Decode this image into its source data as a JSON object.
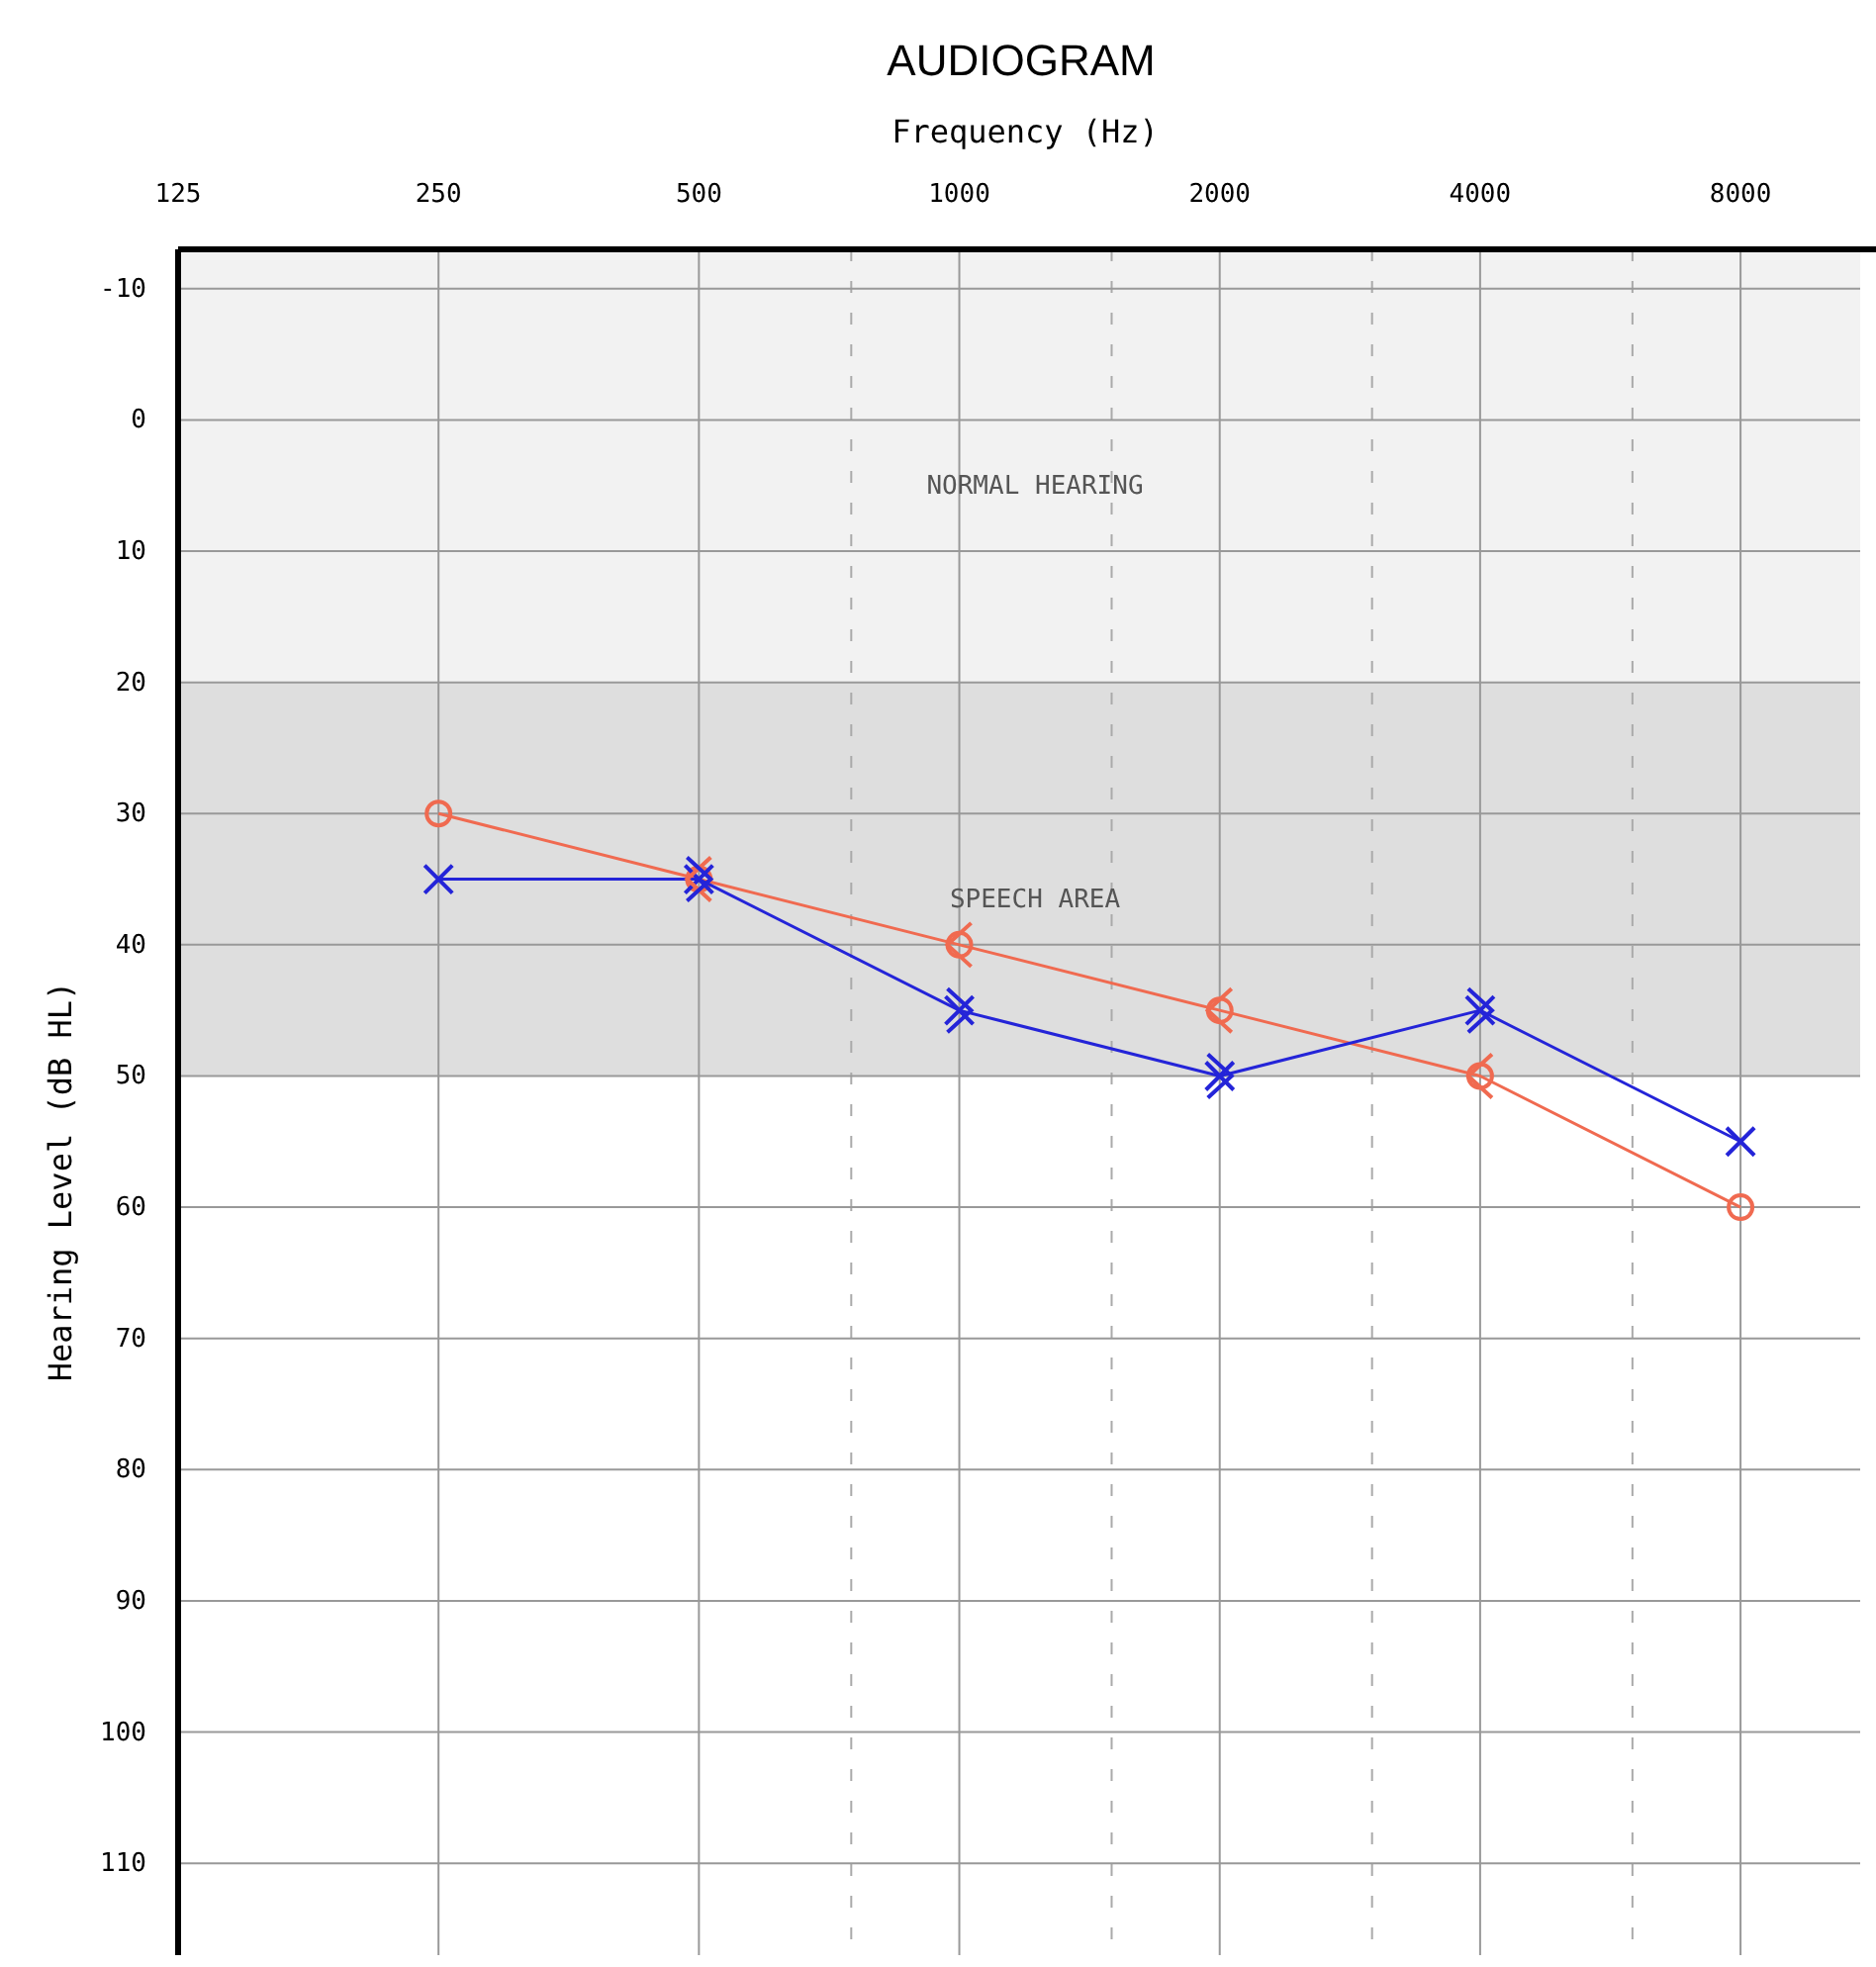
{
  "chart_data": {
    "type": "line",
    "title": "AUDIOGRAM",
    "xlabel": "Frequency (Hz)",
    "ylabel": "Hearing Level (dB HL)",
    "log": "x",
    "xlim": [
      125,
      11000
    ],
    "xticks": [
      125,
      250,
      500,
      {
        "value": 750,
        "label": null
      },
      1000,
      {
        "value": 1500,
        "label": null
      },
      2000,
      {
        "value": 3000,
        "label": null
      },
      4000,
      {
        "value": 6000,
        "label": null
      },
      8000
    ],
    "ylim": [
      117,
      -13
    ],
    "yticks": [
      -10,
      0,
      10,
      20,
      30,
      40,
      50,
      60,
      70,
      80,
      90,
      100,
      110
    ],
    "grid": true,
    "line_style": "solid",
    "bands": [
      {
        "axis": "y",
        "from": -13,
        "to": 20,
        "label": "NORMAL HEARING",
        "color": "#f2f2f2"
      },
      {
        "axis": "y",
        "from": 20,
        "to": 50,
        "label": "SPEECH AREA",
        "color": "#dedede"
      }
    ],
    "series": [
      {
        "marker": "circle",
        "color": "#f06a50",
        "x": [
          250,
          500,
          1000,
          2000,
          4000,
          8000
        ],
        "values": [
          30,
          35,
          40,
          45,
          50,
          60
        ]
      },
      {
        "marker": "cross",
        "color": "#2424d8",
        "x": [
          250,
          500,
          1000,
          2000,
          4000,
          8000
        ],
        "values": [
          35,
          35,
          45,
          50,
          45,
          55
        ]
      },
      {
        "type": "scatter",
        "color": "#f06a50",
        "x": [
          500,
          1000,
          2000,
          4000
        ],
        "values": [
          35,
          40,
          45,
          50
        ]
      },
      {
        "type": "scatter",
        "color": "#2424d8",
        "x": [
          500,
          1000,
          2000,
          4000
        ],
        "values": [
          35,
          45,
          50,
          45
        ]
      }
    ]
  }
}
